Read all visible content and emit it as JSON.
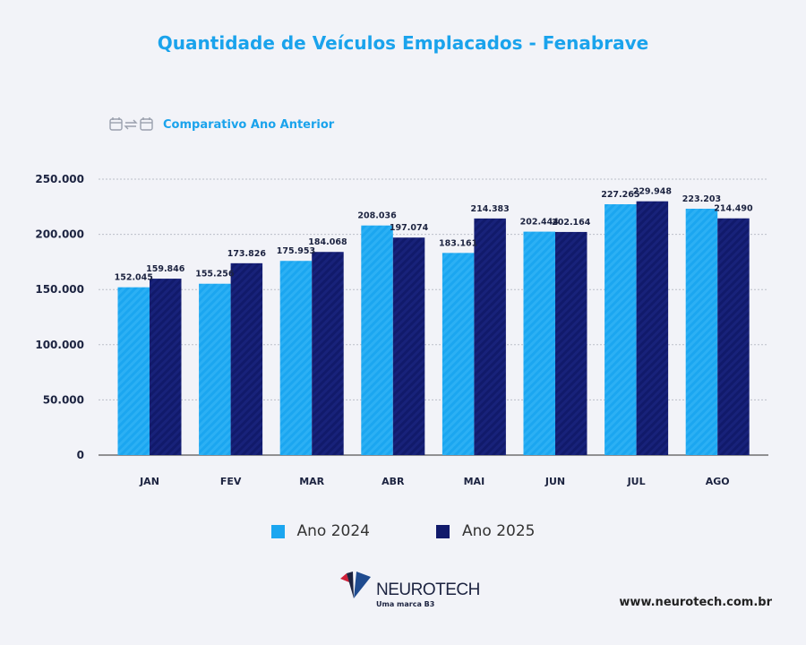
{
  "header": {
    "title": "Quantidade de Veículos Emplacados - Fenabrave",
    "subtitle": "Comparativo Ano Anterior",
    "subtitle_icon": "calendar-swap-icon"
  },
  "chart_data": {
    "type": "bar",
    "title": "Quantidade de Veículos Emplacados - Fenabrave",
    "categories": [
      "JAN",
      "FEV",
      "MAR",
      "ABR",
      "MAI",
      "JUN",
      "JUL",
      "AGO"
    ],
    "series": [
      {
        "name": "Ano 2024",
        "color": "#1ba6f0",
        "values": [
          152045,
          155256,
          175953,
          208036,
          183161,
          202444,
          227265,
          223203
        ],
        "labels": [
          "152.045",
          "155.256",
          "175.953",
          "208.036",
          "183.161",
          "202.444",
          "227.265",
          "223.203"
        ]
      },
      {
        "name": "Ano 2025",
        "color": "#111a6b",
        "values": [
          159846,
          173826,
          184068,
          197074,
          214383,
          202164,
          229948,
          214490
        ],
        "labels": [
          "159.846",
          "173.826",
          "184.068",
          "197.074",
          "214.383",
          "202.164",
          "229.948",
          "214.490"
        ]
      }
    ],
    "yticks": [
      0,
      50000,
      100000,
      150000,
      200000,
      250000
    ],
    "ytick_labels": [
      "0",
      "50.000",
      "100.000",
      "150.000",
      "200.000",
      "250.000"
    ],
    "ylim": [
      0,
      250000
    ],
    "grid": true,
    "legend": "bottom"
  },
  "footer": {
    "brand": "NEUROTECH",
    "tagline": "Uma marca B3",
    "url": "www.neurotech.com.br"
  }
}
